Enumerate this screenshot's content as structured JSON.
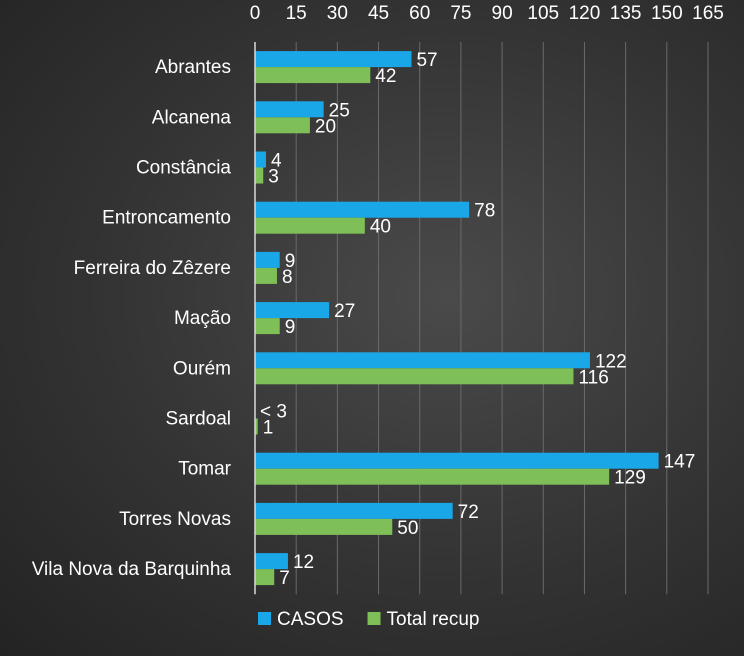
{
  "chart_data": {
    "type": "bar",
    "orientation": "horizontal",
    "categories": [
      "Abrantes",
      "Alcanena",
      "Constância",
      "Entroncamento",
      "Ferreira do Zêzere",
      "Mação",
      "Ourém",
      "Sardoal",
      "Tomar",
      "Torres Novas",
      "Vila Nova da Barquinha"
    ],
    "series": [
      {
        "name": "CASOS",
        "color": "#1aa7e8",
        "values": [
          57,
          25,
          4,
          78,
          9,
          27,
          122,
          0,
          147,
          72,
          12
        ],
        "labels": [
          "57",
          "25",
          "4",
          "78",
          "9",
          "27",
          "122",
          "< 3",
          "147",
          "72",
          "12"
        ]
      },
      {
        "name": "Total recup",
        "color": "#7fbf57",
        "values": [
          42,
          20,
          3,
          40,
          8,
          9,
          116,
          1,
          129,
          50,
          7
        ],
        "labels": [
          "42",
          "20",
          "3",
          "40",
          "8",
          "9",
          "116",
          "1",
          "129",
          "50",
          "7"
        ]
      }
    ],
    "xaxis": {
      "position": "top",
      "min": 0,
      "max": 165,
      "ticks": [
        0,
        15,
        30,
        45,
        60,
        75,
        90,
        105,
        120,
        135,
        150,
        165
      ]
    },
    "gridlines": true,
    "legend": "bottom"
  }
}
